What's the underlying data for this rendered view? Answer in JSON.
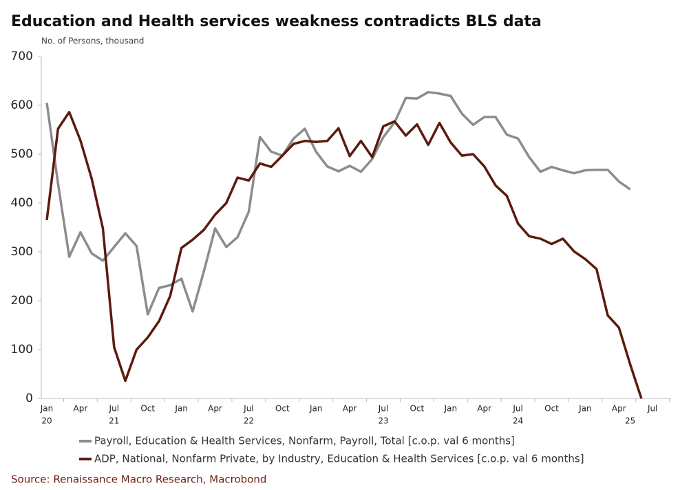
{
  "chart_data": {
    "type": "line",
    "title": "Education and Health services weakness contradicts BLS data",
    "y_axis_label": "No. of Persons, thousand",
    "source": "Source: Renaissance Macro Research, Macrobond",
    "categories": [
      "Jan",
      null,
      null,
      "Apr",
      null,
      null,
      "Jul",
      null,
      null,
      "Oct",
      null,
      null,
      "Jan",
      null,
      null,
      "Apr",
      null,
      null,
      "Jul",
      null,
      null,
      "Oct",
      null,
      null,
      "Jan",
      null,
      null,
      "Apr",
      null,
      null,
      "Jul",
      null,
      null,
      "Oct",
      null,
      null,
      "Jan",
      null,
      null,
      "Apr",
      null,
      null,
      "Jul",
      null,
      null,
      "Oct",
      null,
      null,
      "Jan",
      null,
      null,
      "Apr",
      null,
      null,
      "Jul"
    ],
    "year_labels": [
      {
        "index": 0,
        "label": "20"
      },
      {
        "index": 6,
        "label": "21"
      },
      {
        "index": 18,
        "label": "22"
      },
      {
        "index": 30,
        "label": "23"
      },
      {
        "index": 42,
        "label": "24"
      },
      {
        "index": 52,
        "label": "25"
      }
    ],
    "series": [
      {
        "name": "Payroll, Education & Health Services, Nonfarm, Payroll, Total [c.o.p. val 6 months]",
        "color": "#8c8c8c",
        "values": [
          605,
          440,
          290,
          340,
          297,
          282,
          310,
          338,
          312,
          172,
          226,
          232,
          245,
          178,
          260,
          348,
          310,
          330,
          382,
          535,
          505,
          497,
          532,
          552,
          505,
          475,
          465,
          476,
          464,
          490,
          535,
          565,
          615,
          614,
          627,
          624,
          619,
          583,
          560,
          576,
          576,
          540,
          532,
          494,
          464,
          474,
          467,
          461,
          467,
          468,
          468,
          444,
          428,
          null,
          null
        ]
      },
      {
        "name": "ADP, National, Nonfarm Private, by Industry, Education & Health Services [c.o.p. val 6 months]",
        "color": "#5c1a0e",
        "values": [
          365,
          552,
          586,
          528,
          450,
          348,
          105,
          36,
          100,
          125,
          158,
          210,
          308,
          325,
          345,
          376,
          400,
          452,
          446,
          481,
          474,
          497,
          521,
          527,
          525,
          527,
          553,
          496,
          527,
          494,
          557,
          567,
          538,
          561,
          519,
          564,
          524,
          497,
          500,
          475,
          436,
          415,
          358,
          332,
          327,
          316,
          327,
          301,
          285,
          265,
          170,
          145,
          70,
          0,
          null
        ]
      }
    ],
    "ylim": [
      0,
      700
    ],
    "yticks": [
      0,
      100,
      200,
      300,
      400,
      500,
      600,
      700
    ],
    "grid": false
  }
}
